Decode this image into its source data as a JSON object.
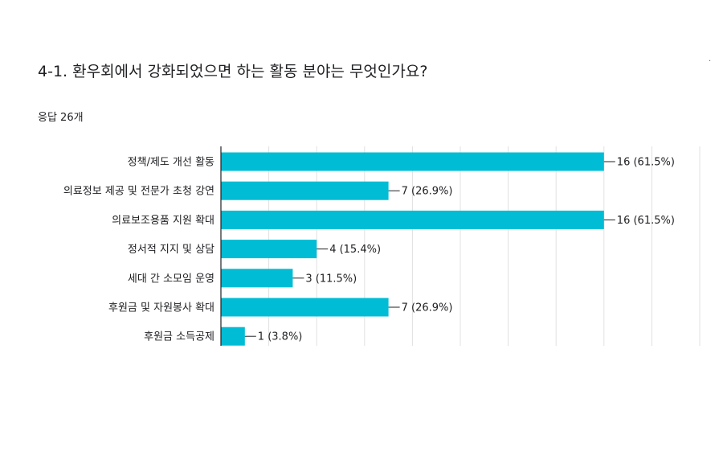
{
  "question": {
    "title": "4-1. 환우회에서 강화되었으면 하는 활동 분야는 무엇인가요?",
    "response_count": "응답 26개",
    "corner_mark": "."
  },
  "colors": {
    "bar": "#00bcd4",
    "grid": "#e0e0e0",
    "axis": "#202124",
    "text": "#202124"
  },
  "chart_data": {
    "type": "bar",
    "orientation": "horizontal",
    "title": "",
    "xlabel": "",
    "ylabel": "",
    "categories": [
      "정책/제도 개선 활동",
      "의료정보 제공 및 전문가 초청 강연",
      "의료보조용품 지원 확대",
      "정서적 지지 및 상담",
      "세대 간 소모임 운영",
      "후원금 및 자원봉사 확대",
      "후원금 소득공제"
    ],
    "values": [
      16,
      7,
      16,
      4,
      3,
      7,
      1
    ],
    "value_labels": [
      "16 (61.5%)",
      "7 (26.9%)",
      "16 (61.5%)",
      "4 (15.4%)",
      "3 (11.5%)",
      "7 (26.9%)",
      "1 (3.8%)"
    ],
    "xlim": [
      0,
      20
    ],
    "grid": true,
    "legend": "none"
  }
}
